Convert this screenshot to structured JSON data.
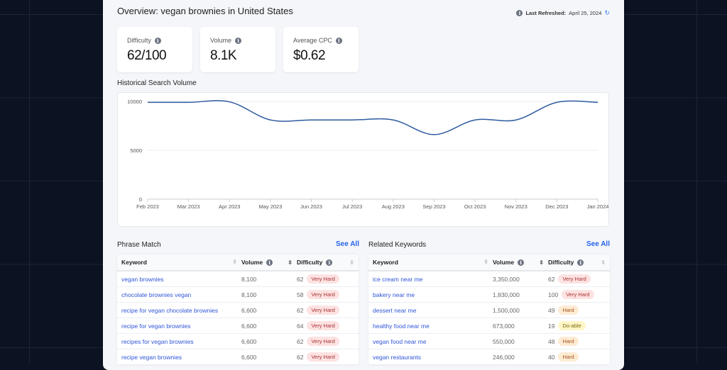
{
  "header": {
    "title": "Overview: vegan brownies in United States",
    "refreshed_label": "Last Refreshed:",
    "refreshed_date": "April 25, 2024"
  },
  "metrics": [
    {
      "label": "Difficulty",
      "value": "62/100"
    },
    {
      "label": "Volume",
      "value": "8.1K"
    },
    {
      "label": "Average CPC",
      "value": "$0.62"
    }
  ],
  "history_title": "Historical Search Volume",
  "chart_data": {
    "type": "line",
    "title": "Historical Search Volume",
    "x": [
      "Feb 2023",
      "Mar 2023",
      "Apr 2023",
      "May 2023",
      "Jun 2023",
      "Jul 2023",
      "Aug 2023",
      "Sep 2023",
      "Oct 2023",
      "Nov 2023",
      "Dec 2023",
      "Jan 2024"
    ],
    "series": [
      {
        "name": "Volume",
        "values": [
          9900,
          9900,
          9950,
          8100,
          8100,
          8100,
          8100,
          6600,
          8100,
          8100,
          9900,
          9900
        ]
      }
    ],
    "yticks": [
      0,
      5000,
      10000
    ],
    "ylim": [
      0,
      10000
    ],
    "color": "#2d5aa0",
    "grid": true
  },
  "phrase": {
    "title": "Phrase Match",
    "see_all": "See All",
    "headers": [
      "Keyword",
      "Volume",
      "Difficulty"
    ],
    "rows": [
      [
        "vegan brownies",
        "8,100",
        "62",
        "Very Hard",
        "vh"
      ],
      [
        "chocolate brownies vegan",
        "8,100",
        "58",
        "Very Hard",
        "vh"
      ],
      [
        "recipe for vegan chocolate brownies",
        "6,600",
        "62",
        "Very Hard",
        "vh"
      ],
      [
        "recipe for vegan brownies",
        "6,600",
        "64",
        "Very Hard",
        "vh"
      ],
      [
        "recipes for vegan brownies",
        "6,600",
        "62",
        "Very Hard",
        "vh"
      ],
      [
        "recipe vegan brownies",
        "6,600",
        "62",
        "Very Hard",
        "vh"
      ]
    ]
  },
  "related": {
    "title": "Related Keywords",
    "see_all": "See All",
    "headers": [
      "Keyword",
      "Volume",
      "Difficulty"
    ],
    "rows": [
      [
        "ice cream near me",
        "3,350,000",
        "62",
        "Very Hard",
        "vh"
      ],
      [
        "bakery near me",
        "1,830,000",
        "100",
        "Very Hard",
        "vh"
      ],
      [
        "dessert near me",
        "1,500,000",
        "49",
        "Hard",
        "h"
      ],
      [
        "healthy food near me",
        "673,000",
        "19",
        "Do-able",
        "d"
      ],
      [
        "vegan food near me",
        "550,000",
        "48",
        "Hard",
        "h"
      ],
      [
        "vegan restaurants",
        "246,000",
        "40",
        "Hard",
        "h"
      ]
    ]
  }
}
